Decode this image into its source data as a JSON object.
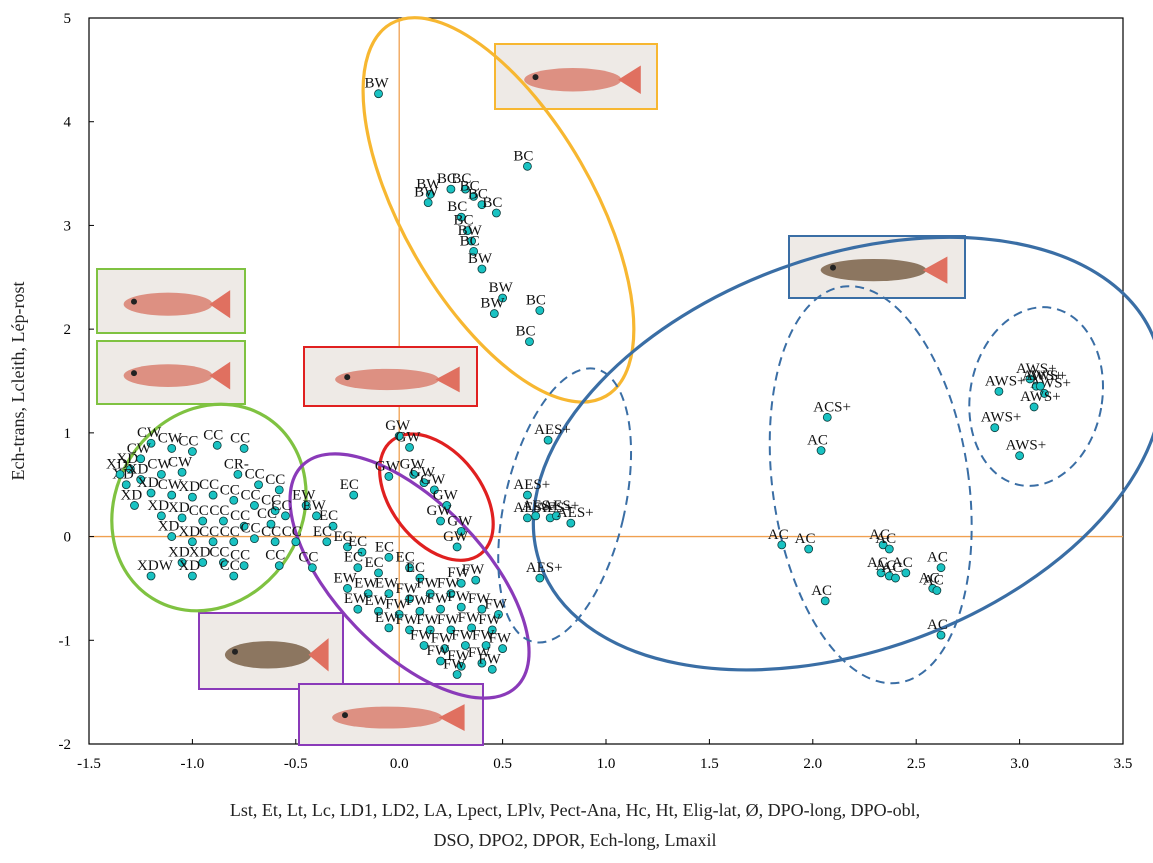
{
  "chart_data": {
    "type": "scatter",
    "title": "",
    "xlabel_lines": [
      "Lst, Et, Lt, Lc, LD1, LD2, LA, Lpect, LPlv, Pect-Ana, Hc, Ht, Elig-lat, Ø, DPO-long, DPO-obl,",
      "DSO, DPO2, DPOR, Ech-long, Lmaxil"
    ],
    "ylabel": "Ech-trans, Lcleith, Lép-rost",
    "xlim": [
      -1.5,
      3.5
    ],
    "ylim": [
      -2,
      5
    ],
    "xticks": [
      "-1.5",
      "-1.0",
      "-0.5",
      "0.0",
      "0.5",
      "1.0",
      "1.5",
      "2.0",
      "2.5",
      "3.0",
      "3.5"
    ],
    "yticks": [
      "-2",
      "-1",
      "0",
      "1",
      "2",
      "3",
      "4",
      "5"
    ],
    "marker_color": "#19c2c2",
    "reference_line_color": "#f0a050",
    "groups": [
      {
        "name": "B",
        "ellipse_color": "#f7b731",
        "points": [
          {
            "x": -0.1,
            "y": 4.27,
            "label": "BW"
          },
          {
            "x": 0.62,
            "y": 3.57,
            "label": "BC"
          },
          {
            "x": 0.15,
            "y": 3.3,
            "label": "BW"
          },
          {
            "x": 0.14,
            "y": 3.22,
            "label": "BW"
          },
          {
            "x": 0.25,
            "y": 3.35,
            "label": "BC"
          },
          {
            "x": 0.32,
            "y": 3.35,
            "label": "BC"
          },
          {
            "x": 0.36,
            "y": 3.28,
            "label": "BC"
          },
          {
            "x": 0.4,
            "y": 3.2,
            "label": "BC"
          },
          {
            "x": 0.47,
            "y": 3.12,
            "label": "BC"
          },
          {
            "x": 0.3,
            "y": 3.08,
            "label": "BC"
          },
          {
            "x": 0.33,
            "y": 2.95,
            "label": "BC"
          },
          {
            "x": 0.35,
            "y": 2.85,
            "label": "BW"
          },
          {
            "x": 0.36,
            "y": 2.75,
            "label": "BC"
          },
          {
            "x": 0.4,
            "y": 2.58,
            "label": "BW"
          },
          {
            "x": 0.5,
            "y": 2.3,
            "label": "BW"
          },
          {
            "x": 0.68,
            "y": 2.18,
            "label": "BC"
          },
          {
            "x": 0.46,
            "y": 2.15,
            "label": "BW"
          },
          {
            "x": 0.63,
            "y": 1.88,
            "label": "BC"
          }
        ]
      },
      {
        "name": "A",
        "ellipse_color": "#3a6ea5",
        "points": [
          {
            "x": 0.72,
            "y": 0.93,
            "label": "AES+"
          },
          {
            "x": 0.62,
            "y": 0.4,
            "label": "AES+"
          },
          {
            "x": 0.62,
            "y": 0.18,
            "label": "AES+"
          },
          {
            "x": 0.66,
            "y": 0.2,
            "label": "AES+"
          },
          {
            "x": 0.73,
            "y": 0.18,
            "label": "AES+"
          },
          {
            "x": 0.76,
            "y": 0.2,
            "label": "AES+"
          },
          {
            "x": 0.83,
            "y": 0.13,
            "label": "AES+"
          },
          {
            "x": 0.68,
            "y": -0.4,
            "label": "AES+"
          },
          {
            "x": 2.07,
            "y": 1.15,
            "label": "ACS+"
          },
          {
            "x": 2.04,
            "y": 0.83,
            "label": "AC"
          },
          {
            "x": 1.85,
            "y": -0.08,
            "label": "AC"
          },
          {
            "x": 1.98,
            "y": -0.12,
            "label": "AC"
          },
          {
            "x": 2.34,
            "y": -0.08,
            "label": "AC"
          },
          {
            "x": 2.37,
            "y": -0.12,
            "label": "AC"
          },
          {
            "x": 2.33,
            "y": -0.35,
            "label": "AC"
          },
          {
            "x": 2.37,
            "y": -0.38,
            "label": "AC"
          },
          {
            "x": 2.4,
            "y": -0.4,
            "label": "AC"
          },
          {
            "x": 2.45,
            "y": -0.35,
            "label": "AC"
          },
          {
            "x": 2.58,
            "y": -0.5,
            "label": "AC"
          },
          {
            "x": 2.6,
            "y": -0.52,
            "label": "AC"
          },
          {
            "x": 2.62,
            "y": -0.3,
            "label": "AC"
          },
          {
            "x": 2.06,
            "y": -0.62,
            "label": "AC"
          },
          {
            "x": 2.62,
            "y": -0.95,
            "label": "AC"
          },
          {
            "x": 2.9,
            "y": 1.4,
            "label": "AWS+"
          },
          {
            "x": 3.05,
            "y": 1.52,
            "label": "AWS+"
          },
          {
            "x": 3.08,
            "y": 1.45,
            "label": "AWS+"
          },
          {
            "x": 3.12,
            "y": 1.38,
            "label": "AWS+"
          },
          {
            "x": 3.1,
            "y": 1.45,
            "label": "AWS+"
          },
          {
            "x": 3.07,
            "y": 1.25,
            "label": "AWS+"
          },
          {
            "x": 2.88,
            "y": 1.05,
            "label": "AWS+"
          },
          {
            "x": 3.0,
            "y": 0.78,
            "label": "AWS+"
          }
        ]
      },
      {
        "name": "G",
        "ellipse_color": "#e02020",
        "points": [
          {
            "x": 0.0,
            "y": 0.97,
            "label": "GW"
          },
          {
            "x": 0.05,
            "y": 0.86,
            "label": "GW"
          },
          {
            "x": -0.05,
            "y": 0.58,
            "label": "GW"
          },
          {
            "x": 0.07,
            "y": 0.6,
            "label": "GW"
          },
          {
            "x": 0.12,
            "y": 0.52,
            "label": "GW"
          },
          {
            "x": 0.17,
            "y": 0.45,
            "label": "GW"
          },
          {
            "x": 0.23,
            "y": 0.3,
            "label": "GW"
          },
          {
            "x": 0.2,
            "y": 0.15,
            "label": "GW"
          },
          {
            "x": 0.3,
            "y": 0.05,
            "label": "GW"
          },
          {
            "x": 0.28,
            "y": -0.1,
            "label": "GW"
          }
        ]
      },
      {
        "name": "C",
        "ellipse_color": "#7fc241",
        "points": [
          {
            "x": -1.2,
            "y": 0.9,
            "label": "CW"
          },
          {
            "x": -1.1,
            "y": 0.85,
            "label": "CW"
          },
          {
            "x": -1.0,
            "y": 0.82,
            "label": "CC"
          },
          {
            "x": -0.88,
            "y": 0.88,
            "label": "CC"
          },
          {
            "x": -0.75,
            "y": 0.85,
            "label": "CC"
          },
          {
            "x": -0.78,
            "y": 0.6,
            "label": "CR-"
          },
          {
            "x": -1.3,
            "y": 0.65,
            "label": "XD"
          },
          {
            "x": -1.25,
            "y": 0.55,
            "label": "XD"
          },
          {
            "x": -1.32,
            "y": 0.5,
            "label": "XD"
          },
          {
            "x": -1.15,
            "y": 0.6,
            "label": "CW"
          },
          {
            "x": -1.05,
            "y": 0.62,
            "label": "CW"
          },
          {
            "x": -1.2,
            "y": 0.42,
            "label": "XD"
          },
          {
            "x": -1.1,
            "y": 0.4,
            "label": "CW"
          },
          {
            "x": -1.0,
            "y": 0.38,
            "label": "XD"
          },
          {
            "x": -0.9,
            "y": 0.4,
            "label": "CC"
          },
          {
            "x": -0.8,
            "y": 0.35,
            "label": "CC"
          },
          {
            "x": -0.7,
            "y": 0.3,
            "label": "CC"
          },
          {
            "x": -0.6,
            "y": 0.25,
            "label": "CC"
          },
          {
            "x": -1.15,
            "y": 0.2,
            "label": "XD"
          },
          {
            "x": -1.05,
            "y": 0.18,
            "label": "XD"
          },
          {
            "x": -0.95,
            "y": 0.15,
            "label": "CC"
          },
          {
            "x": -0.85,
            "y": 0.15,
            "label": "CC"
          },
          {
            "x": -0.75,
            "y": 0.1,
            "label": "CC"
          },
          {
            "x": -0.62,
            "y": 0.12,
            "label": "CC"
          },
          {
            "x": -1.1,
            "y": 0.0,
            "label": "XD"
          },
          {
            "x": -1.0,
            "y": -0.05,
            "label": "XD"
          },
          {
            "x": -0.9,
            "y": -0.05,
            "label": "CC"
          },
          {
            "x": -0.8,
            "y": -0.05,
            "label": "CC"
          },
          {
            "x": -0.7,
            "y": -0.02,
            "label": "CC"
          },
          {
            "x": -0.6,
            "y": -0.05,
            "label": "CC"
          },
          {
            "x": -1.05,
            "y": -0.25,
            "label": "XD"
          },
          {
            "x": -0.95,
            "y": -0.25,
            "label": "XD"
          },
          {
            "x": -0.85,
            "y": -0.25,
            "label": "CC"
          },
          {
            "x": -0.75,
            "y": -0.28,
            "label": "CC"
          },
          {
            "x": -1.2,
            "y": -0.38,
            "label": "XDW"
          },
          {
            "x": -1.0,
            "y": -0.38,
            "label": "XD"
          },
          {
            "x": -0.8,
            "y": -0.38,
            "label": "CC"
          },
          {
            "x": -1.25,
            "y": 0.75,
            "label": "CW"
          },
          {
            "x": -1.35,
            "y": 0.6,
            "label": "XD"
          },
          {
            "x": -1.28,
            "y": 0.3,
            "label": "XD"
          },
          {
            "x": -0.68,
            "y": 0.5,
            "label": "CC"
          },
          {
            "x": -0.58,
            "y": 0.45,
            "label": "CC"
          },
          {
            "x": -0.55,
            "y": 0.2,
            "label": "CC"
          },
          {
            "x": -0.5,
            "y": -0.05,
            "label": "CC"
          },
          {
            "x": -0.58,
            "y": -0.28,
            "label": "CC"
          }
        ]
      },
      {
        "name": "E/F",
        "ellipse_color": "#8a3ab9",
        "points": [
          {
            "x": -0.22,
            "y": 0.4,
            "label": "EC"
          },
          {
            "x": -0.45,
            "y": 0.3,
            "label": "EW"
          },
          {
            "x": -0.4,
            "y": 0.2,
            "label": "EW"
          },
          {
            "x": -0.32,
            "y": 0.1,
            "label": "EC"
          },
          {
            "x": -0.35,
            "y": -0.05,
            "label": "EC"
          },
          {
            "x": -0.25,
            "y": -0.1,
            "label": "EC"
          },
          {
            "x": -0.18,
            "y": -0.15,
            "label": "EC"
          },
          {
            "x": -0.05,
            "y": -0.2,
            "label": "EC"
          },
          {
            "x": -0.42,
            "y": -0.3,
            "label": "CC"
          },
          {
            "x": -0.2,
            "y": -0.3,
            "label": "EC"
          },
          {
            "x": -0.1,
            "y": -0.35,
            "label": "EC"
          },
          {
            "x": 0.05,
            "y": -0.3,
            "label": "EC"
          },
          {
            "x": 0.1,
            "y": -0.4,
            "label": "EC"
          },
          {
            "x": -0.25,
            "y": -0.5,
            "label": "EW"
          },
          {
            "x": -0.15,
            "y": -0.55,
            "label": "EW"
          },
          {
            "x": -0.05,
            "y": -0.55,
            "label": "EW"
          },
          {
            "x": 0.05,
            "y": -0.6,
            "label": "FW"
          },
          {
            "x": 0.15,
            "y": -0.55,
            "label": "FW"
          },
          {
            "x": 0.25,
            "y": -0.55,
            "label": "FW"
          },
          {
            "x": 0.3,
            "y": -0.45,
            "label": "FW"
          },
          {
            "x": 0.37,
            "y": -0.42,
            "label": "FW"
          },
          {
            "x": -0.2,
            "y": -0.7,
            "label": "EW"
          },
          {
            "x": -0.1,
            "y": -0.72,
            "label": "EW"
          },
          {
            "x": 0.0,
            "y": -0.75,
            "label": "FW"
          },
          {
            "x": 0.1,
            "y": -0.72,
            "label": "FW"
          },
          {
            "x": 0.2,
            "y": -0.7,
            "label": "FW"
          },
          {
            "x": 0.3,
            "y": -0.68,
            "label": "FW"
          },
          {
            "x": 0.4,
            "y": -0.7,
            "label": "FW"
          },
          {
            "x": 0.48,
            "y": -0.75,
            "label": "FW"
          },
          {
            "x": -0.05,
            "y": -0.88,
            "label": "EW"
          },
          {
            "x": 0.05,
            "y": -0.9,
            "label": "FW"
          },
          {
            "x": 0.15,
            "y": -0.9,
            "label": "FW"
          },
          {
            "x": 0.25,
            "y": -0.9,
            "label": "FW"
          },
          {
            "x": 0.35,
            "y": -0.88,
            "label": "FW"
          },
          {
            "x": 0.45,
            "y": -0.9,
            "label": "FW"
          },
          {
            "x": 0.12,
            "y": -1.05,
            "label": "FW"
          },
          {
            "x": 0.22,
            "y": -1.08,
            "label": "FW"
          },
          {
            "x": 0.32,
            "y": -1.05,
            "label": "FW"
          },
          {
            "x": 0.42,
            "y": -1.05,
            "label": "FW"
          },
          {
            "x": 0.5,
            "y": -1.08,
            "label": "FW"
          },
          {
            "x": 0.2,
            "y": -1.2,
            "label": "FW"
          },
          {
            "x": 0.3,
            "y": -1.25,
            "label": "FW"
          },
          {
            "x": 0.4,
            "y": -1.22,
            "label": "FW"
          },
          {
            "x": 0.28,
            "y": -1.33,
            "label": "FW"
          },
          {
            "x": 0.45,
            "y": -1.28,
            "label": "FW"
          }
        ]
      }
    ],
    "subgroup_ellipse_color": "#3a6ea5",
    "photo_frame_colors": {
      "top": "#f7b731",
      "right": "#3a6ea5",
      "left_top": "#7fc241",
      "left_bottom": "#7fc241",
      "middle": "#e02020",
      "bottom_left": "#8a3ab9",
      "bottom_right": "#8a3ab9"
    }
  }
}
